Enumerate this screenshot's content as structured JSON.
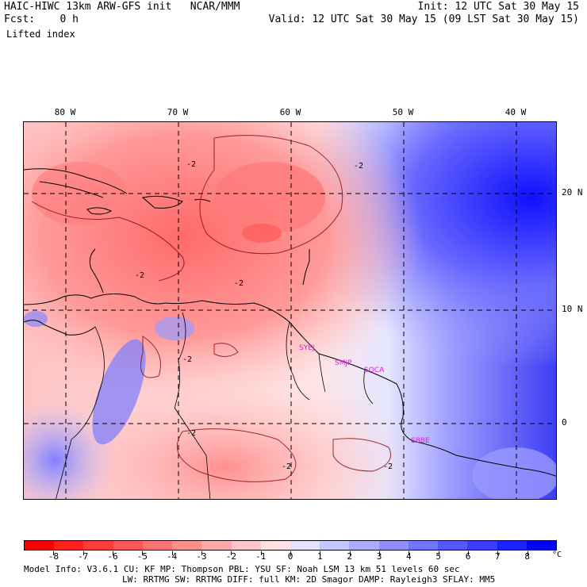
{
  "header": {
    "model_line": "HAIC-HIWC 13km ARW-GFS init   NCAR/MMM",
    "fcst_line": "Fcst:    0 h",
    "field_name": "Lifted index",
    "init_line": "Init: 12 UTC Sat 30 May 15",
    "valid_line": "Valid: 12 UTC Sat 30 May 15 (09 LST Sat 30 May 15)"
  },
  "map": {
    "lon_labels": [
      "80 W",
      "70 W",
      "60 W",
      "50 W",
      "40 W"
    ],
    "lat_labels": [
      "20 N",
      "10 N",
      "0"
    ],
    "station_labels": [
      "SYEJ",
      "SMJP",
      "SOCA",
      "SBBE"
    ],
    "contour_label": "-2",
    "colors": {
      "negative": "#ff1a1a",
      "positive": "#1a1aff",
      "neutral": "#ffffff",
      "station_text": "#e020e0",
      "coast": "#000000"
    }
  },
  "colorbar": {
    "tick_labels": [
      "-8",
      "-7",
      "-6",
      "-5",
      "-4",
      "-3",
      "-2",
      "-1",
      "0",
      "1",
      "2",
      "3",
      "4",
      "5",
      "6",
      "7",
      "8"
    ],
    "unit": "°C",
    "colors": [
      "#ff0000",
      "#ff2020",
      "#ff3c3c",
      "#ff5757",
      "#ff7373",
      "#ff8f8f",
      "#ffabab",
      "#ffc7c7",
      "#ffe3e3",
      "#e3e3ff",
      "#c7c7ff",
      "#ababff",
      "#8f8fff",
      "#7373ff",
      "#5757ff",
      "#3c3cff",
      "#2020ff",
      "#0000ff"
    ]
  },
  "footer": {
    "line1": "Model Info: V3.6.1    CU: KF      MP: Thompson     PBL: YSU       SF: Noah LSM     13 km   51 levels   60 sec",
    "line2": "LW: RRTMG    SW: RRTMG   DIFF: full    KM: 2D Smagor DAMP: Rayleigh3  SFLAY: MM5"
  }
}
